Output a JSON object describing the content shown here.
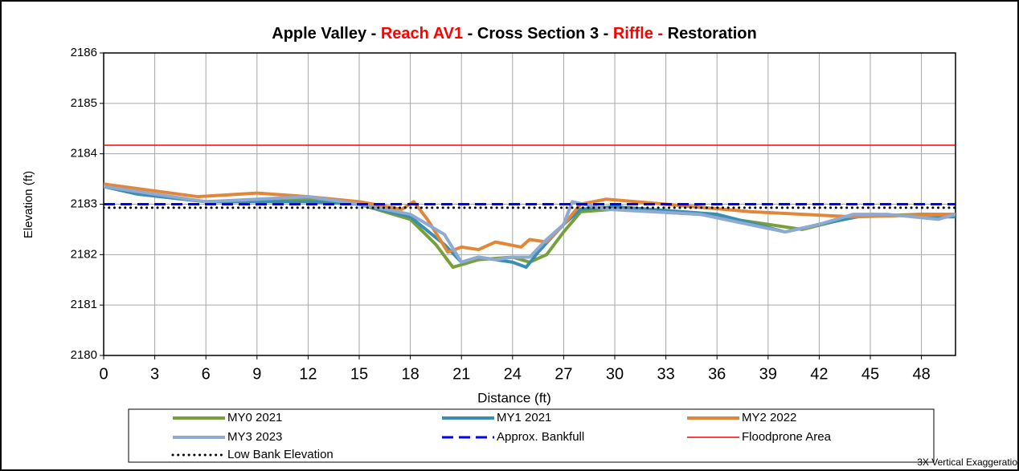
{
  "chart_data": {
    "type": "line",
    "title_parts": [
      {
        "text": "Apple Valley - ",
        "color": "#000000"
      },
      {
        "text": "Reach AV1",
        "color": "#ff0000"
      },
      {
        "text": " - Cross Section 3 - ",
        "color": "#000000"
      },
      {
        "text": "Riffle -",
        "color": "#ff0000"
      },
      {
        "text": " Restoration",
        "color": "#000000"
      }
    ],
    "x_label": "Distance (ft)",
    "y_label": "Elevation (ft)",
    "annotation": "3X Vertical Exaggeratio",
    "xlim": [
      0,
      50
    ],
    "xticks": [
      0,
      3,
      6,
      9,
      12,
      15,
      18,
      21,
      24,
      27,
      30,
      33,
      36,
      39,
      42,
      45,
      48
    ],
    "ylim": [
      2180,
      2186
    ],
    "yticks": [
      2180,
      2181,
      2182,
      2183,
      2184,
      2185,
      2186
    ],
    "grid": true,
    "series": [
      {
        "name": "MY0 2021",
        "color": "#77a03a",
        "style": "solid",
        "width": 4,
        "x": [
          0,
          2,
          6,
          12,
          15,
          18,
          19.5,
          20.5,
          22,
          24,
          25,
          26,
          27,
          28,
          30,
          35,
          38,
          41,
          44,
          48,
          50
        ],
        "values": [
          2183.35,
          2183.2,
          2183.05,
          2183.1,
          2183.0,
          2182.7,
          2182.2,
          2181.75,
          2181.9,
          2181.95,
          2181.85,
          2182.0,
          2182.45,
          2182.85,
          2182.9,
          2182.8,
          2182.65,
          2182.5,
          2182.75,
          2182.8,
          2182.8
        ]
      },
      {
        "name": "MY1 2021",
        "color": "#3a8fb0",
        "style": "solid",
        "width": 4,
        "x": [
          0,
          2,
          6,
          12,
          15,
          18,
          20,
          21,
          22,
          24,
          24.8,
          25.5,
          27,
          28,
          30,
          36,
          40,
          42,
          45,
          49,
          50
        ],
        "values": [
          2183.35,
          2183.2,
          2183.05,
          2183.05,
          2183.0,
          2182.75,
          2182.2,
          2181.85,
          2181.95,
          2181.85,
          2181.75,
          2182.05,
          2182.6,
          2182.9,
          2182.95,
          2182.8,
          2182.45,
          2182.6,
          2182.8,
          2182.75,
          2182.75
        ]
      },
      {
        "name": "MY2 2022",
        "color": "#e2873a",
        "style": "solid",
        "width": 4,
        "x": [
          0,
          5.5,
          9,
          12,
          15,
          17.5,
          18.2,
          19,
          20.2,
          21,
          22,
          23,
          24.5,
          25,
          26,
          27,
          28,
          29.5,
          33,
          38,
          44,
          50
        ],
        "values": [
          2183.4,
          2183.15,
          2183.22,
          2183.15,
          2183.05,
          2182.9,
          2183.05,
          2182.7,
          2182.05,
          2182.15,
          2182.1,
          2182.25,
          2182.15,
          2182.3,
          2182.25,
          2182.6,
          2183.0,
          2183.1,
          2183.0,
          2182.85,
          2182.75,
          2182.8
        ]
      },
      {
        "name": "MY3 2023",
        "color": "#8eaad3",
        "style": "solid",
        "width": 4,
        "x": [
          0,
          3,
          6,
          9,
          12,
          15,
          18,
          20,
          21,
          22,
          23,
          24,
          25,
          26,
          27,
          27.5,
          29.5,
          35,
          40,
          42,
          44,
          46,
          49,
          50
        ],
        "values": [
          2183.35,
          2183.2,
          2183.05,
          2183.1,
          2183.15,
          2183.0,
          2182.8,
          2182.4,
          2181.85,
          2181.95,
          2181.9,
          2181.95,
          2181.95,
          2182.3,
          2182.6,
          2183.05,
          2182.9,
          2182.8,
          2182.45,
          2182.6,
          2182.8,
          2182.8,
          2182.7,
          2182.8
        ]
      },
      {
        "name": "Approx. Bankfull",
        "color": "#0000ff",
        "style": "dashed",
        "width": 3,
        "x": [
          0,
          50
        ],
        "values": [
          2183.0,
          2183.0
        ]
      },
      {
        "name": "Floodprone Area",
        "color": "#ff0000",
        "style": "solid",
        "width": 1.5,
        "x": [
          0,
          50
        ],
        "values": [
          2184.17,
          2184.17
        ]
      },
      {
        "name": "Low Bank Elevation",
        "color": "#000000",
        "style": "dotted",
        "width": 3,
        "x": [
          0,
          50
        ],
        "values": [
          2182.93,
          2182.93
        ]
      }
    ]
  }
}
